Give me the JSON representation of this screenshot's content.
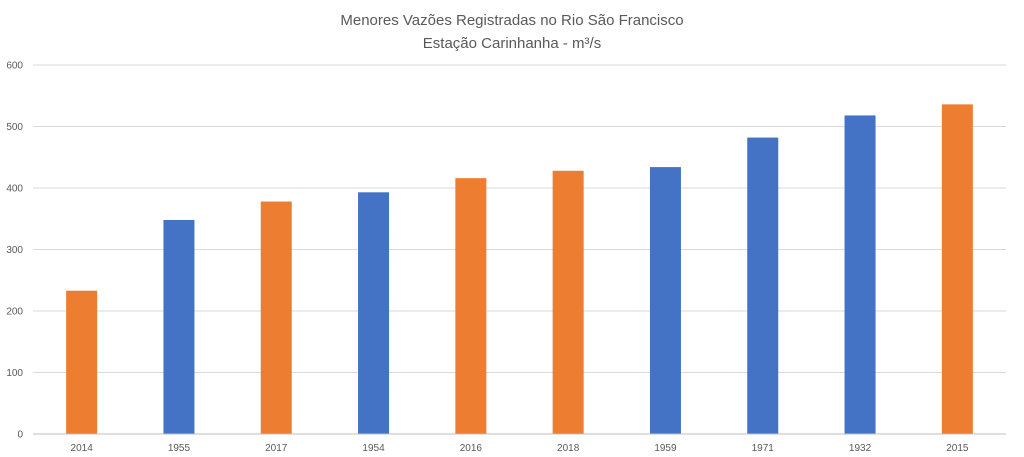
{
  "chart_data": {
    "type": "bar",
    "title": "Menores Vazões Registradas no Rio São Francisco",
    "subtitle": "Estação Carinhanha - m³/s",
    "xlabel": "",
    "ylabel": "",
    "ylim": [
      0,
      600
    ],
    "yticks": [
      "0",
      "100",
      "200",
      "300",
      "400",
      "500",
      "600"
    ],
    "grid": true,
    "legend": "none",
    "categories": [
      "2014",
      "1955",
      "2017",
      "1954",
      "2016",
      "2018",
      "1959",
      "1971",
      "1932",
      "2015"
    ],
    "values": [
      233,
      348,
      378,
      393,
      416,
      428,
      434,
      482,
      518,
      536
    ],
    "bar_colors": [
      "#ED7D31",
      "#4472C4",
      "#ED7D31",
      "#4472C4",
      "#ED7D31",
      "#ED7D31",
      "#4472C4",
      "#4472C4",
      "#4472C4",
      "#ED7D31"
    ]
  }
}
